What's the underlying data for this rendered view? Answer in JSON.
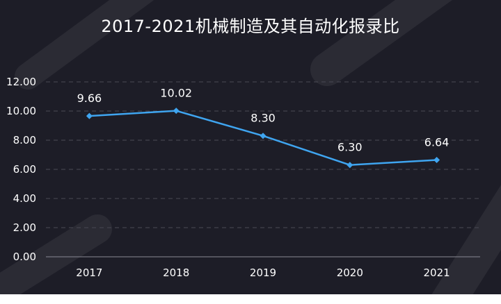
{
  "chart_data": {
    "type": "line",
    "title": "2017-2021机械制造及其自动化报录比",
    "categories": [
      "2017",
      "2018",
      "2019",
      "2020",
      "2021"
    ],
    "series": [
      {
        "values": [
          9.66,
          10.02,
          8.3,
          6.3,
          6.64
        ],
        "labels": [
          "9.66",
          "10.02",
          "8.30",
          "6.30",
          "6.64"
        ]
      }
    ],
    "y_ticks": [
      "0.00",
      "2.00",
      "4.00",
      "6.00",
      "8.00",
      "10.00",
      "12.00"
    ],
    "ylim": [
      0,
      12
    ],
    "grid": true,
    "line_color": "#3fa5f0",
    "background_color": "#1d1d27"
  }
}
